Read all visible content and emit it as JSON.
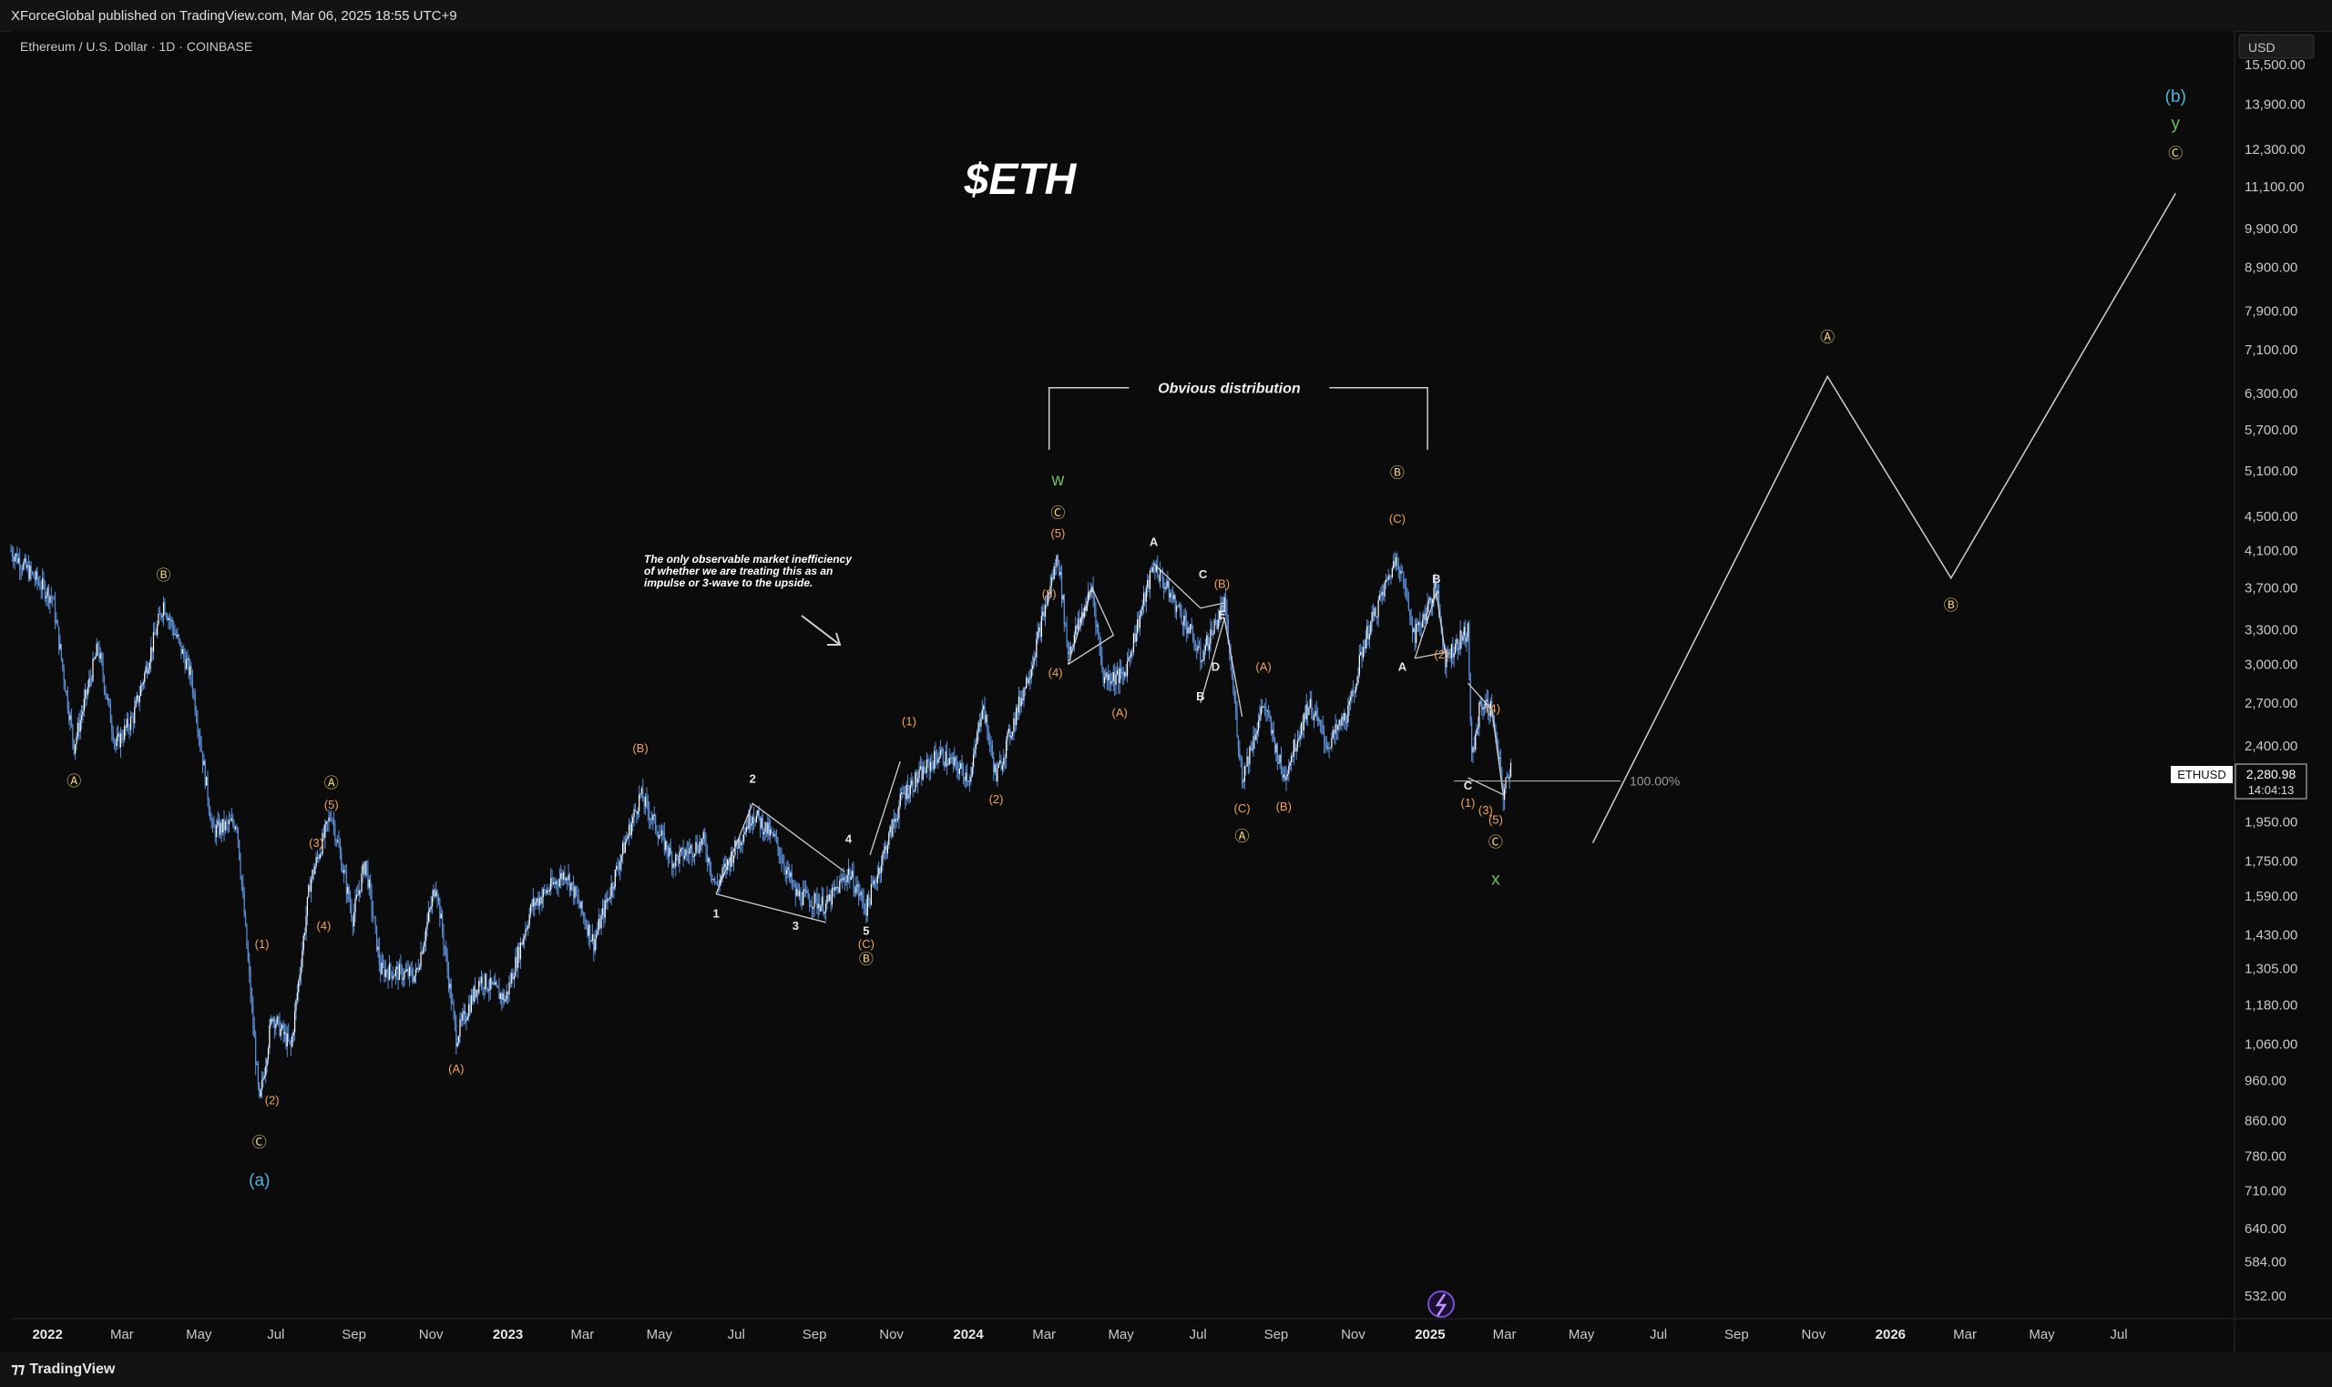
{
  "header": {
    "published": "XForceGlobal published on TradingView.com, Mar 06, 2025 18:55 UTC+9",
    "symbol": "Ethereum / U.S. Dollar · 1D · COINBASE",
    "currency": "USD"
  },
  "footer": {
    "brand": "TradingView"
  },
  "colors": {
    "background": "#0b0b0b",
    "candle": "#5b8fd6",
    "orange_label": "#f0a45a",
    "yellow_label": "#ecd076",
    "green_label": "#6dbd63",
    "cyan_label": "#4fb3d9",
    "projection_line": "#cfcfcf"
  },
  "chart_data": {
    "type": "candlestick",
    "title": "$ETH",
    "y_scale": "log",
    "ylim": [
      500,
      17000
    ],
    "x_range": [
      "2021-12-03",
      "2026-09-30"
    ],
    "y_ticks": [
      "15,500.00",
      "13,900.00",
      "12,300.00",
      "11,100.00",
      "9,900.00",
      "8,900.00",
      "7,900.00",
      "7,100.00",
      "6,300.00",
      "5,700.00",
      "5,100.00",
      "4,500.00",
      "4,100.00",
      "3,700.00",
      "3,300.00",
      "3,000.00",
      "2,700.00",
      "2,400.00",
      "1,950.00",
      "1,750.00",
      "1,590.00",
      "1,430.00",
      "1,305.00",
      "1,180.00",
      "1,060.00",
      "960.00",
      "860.00",
      "780.00",
      "710.00",
      "640.00",
      "584.00",
      "532.00"
    ],
    "x_ticks": [
      {
        "label": "2022",
        "date": "2022-01-01",
        "bold": true
      },
      {
        "label": "Mar",
        "date": "2022-03-01"
      },
      {
        "label": "May",
        "date": "2022-05-01"
      },
      {
        "label": "Jul",
        "date": "2022-07-01"
      },
      {
        "label": "Sep",
        "date": "2022-09-01"
      },
      {
        "label": "Nov",
        "date": "2022-11-01"
      },
      {
        "label": "2023",
        "date": "2023-01-01",
        "bold": true
      },
      {
        "label": "Mar",
        "date": "2023-03-01"
      },
      {
        "label": "May",
        "date": "2023-05-01"
      },
      {
        "label": "Jul",
        "date": "2023-07-01"
      },
      {
        "label": "Sep",
        "date": "2023-09-01"
      },
      {
        "label": "Nov",
        "date": "2023-11-01"
      },
      {
        "label": "2024",
        "date": "2024-01-01",
        "bold": true
      },
      {
        "label": "Mar",
        "date": "2024-03-01"
      },
      {
        "label": "May",
        "date": "2024-05-01"
      },
      {
        "label": "Jul",
        "date": "2024-07-01"
      },
      {
        "label": "Sep",
        "date": "2024-09-01"
      },
      {
        "label": "Nov",
        "date": "2024-11-01"
      },
      {
        "label": "2025",
        "date": "2025-01-01",
        "bold": true
      },
      {
        "label": "Mar",
        "date": "2025-03-01"
      },
      {
        "label": "May",
        "date": "2025-05-01"
      },
      {
        "label": "Jul",
        "date": "2025-07-01"
      },
      {
        "label": "Sep",
        "date": "2025-09-01"
      },
      {
        "label": "Nov",
        "date": "2025-11-01"
      },
      {
        "label": "2026",
        "date": "2026-01-01",
        "bold": true
      },
      {
        "label": "Mar",
        "date": "2026-03-01"
      },
      {
        "label": "May",
        "date": "2026-05-01"
      },
      {
        "label": "Jul",
        "date": "2026-07-01"
      }
    ],
    "price_path": [
      [
        "2021-12-03",
        4100
      ],
      [
        "2021-12-15",
        3900
      ],
      [
        "2022-01-05",
        3600
      ],
      [
        "2022-01-22",
        2400
      ],
      [
        "2022-02-10",
        3150
      ],
      [
        "2022-02-24",
        2400
      ],
      [
        "2022-03-10",
        2600
      ],
      [
        "2022-04-03",
        3550
      ],
      [
        "2022-04-25",
        2900
      ],
      [
        "2022-05-12",
        1900
      ],
      [
        "2022-05-31",
        1950
      ],
      [
        "2022-06-18",
        900
      ],
      [
        "2022-06-28",
        1150
      ],
      [
        "2022-07-13",
        1050
      ],
      [
        "2022-07-28",
        1650
      ],
      [
        "2022-08-14",
        2000
      ],
      [
        "2022-08-31",
        1500
      ],
      [
        "2022-09-10",
        1750
      ],
      [
        "2022-09-22",
        1300
      ],
      [
        "2022-10-20",
        1280
      ],
      [
        "2022-11-05",
        1650
      ],
      [
        "2022-11-21",
        1080
      ],
      [
        "2022-12-10",
        1270
      ],
      [
        "2022-12-30",
        1200
      ],
      [
        "2023-01-20",
        1550
      ],
      [
        "2023-02-16",
        1700
      ],
      [
        "2023-03-10",
        1400
      ],
      [
        "2023-04-16",
        2100
      ],
      [
        "2023-05-12",
        1750
      ],
      [
        "2023-06-05",
        1850
      ],
      [
        "2023-06-15",
        1630
      ],
      [
        "2023-07-14",
        2000
      ],
      [
        "2023-08-01",
        1850
      ],
      [
        "2023-08-17",
        1600
      ],
      [
        "2023-09-10",
        1550
      ],
      [
        "2023-09-28",
        1700
      ],
      [
        "2023-10-12",
        1540
      ],
      [
        "2023-11-10",
        2100
      ],
      [
        "2023-12-09",
        2350
      ],
      [
        "2024-01-03",
        2200
      ],
      [
        "2024-01-12",
        2700
      ],
      [
        "2024-01-23",
        2200
      ],
      [
        "2024-02-20",
        3000
      ],
      [
        "2024-03-12",
        4050
      ],
      [
        "2024-03-20",
        3100
      ],
      [
        "2024-04-08",
        3700
      ],
      [
        "2024-04-17",
        2900
      ],
      [
        "2024-05-03",
        2900
      ],
      [
        "2024-05-27",
        3950
      ],
      [
        "2024-06-24",
        3300
      ],
      [
        "2024-07-03",
        3050
      ],
      [
        "2024-07-22",
        3550
      ],
      [
        "2024-08-05",
        2200
      ],
      [
        "2024-08-22",
        2700
      ],
      [
        "2024-09-07",
        2200
      ],
      [
        "2024-09-27",
        2700
      ],
      [
        "2024-10-12",
        2400
      ],
      [
        "2024-10-29",
        2650
      ],
      [
        "2024-11-10",
        3200
      ],
      [
        "2024-12-06",
        4050
      ],
      [
        "2024-12-20",
        3250
      ],
      [
        "2025-01-06",
        3700
      ],
      [
        "2025-01-13",
        3050
      ],
      [
        "2025-01-31",
        3300
      ],
      [
        "2025-02-03",
        2300
      ],
      [
        "2025-02-10",
        2700
      ],
      [
        "2025-02-19",
        2650
      ],
      [
        "2025-02-28",
        2100
      ],
      [
        "2025-03-06",
        2280
      ]
    ],
    "last_price": {
      "symbol": "ETHUSD",
      "value": "2,280.98",
      "countdown": "14:04:13"
    },
    "projection": [
      [
        "2025-05-10",
        1840
      ],
      [
        "2025-11-12",
        6600
      ],
      [
        "2026-02-18",
        3800
      ],
      [
        "2026-08-15",
        10900
      ]
    ],
    "fib_level": {
      "label": "100.00%",
      "price": 2180
    },
    "distribution_box": {
      "label": "Obvious distribution",
      "from": "2024-03-05",
      "to": "2024-12-30",
      "top_price": 6400,
      "bottom_price": 5400
    },
    "note_text": [
      "The only observable market inefficiency",
      "of whether we are treating this as an",
      "impulse or 3-wave to the upside."
    ],
    "labels": [
      {
        "t": "Ⓐ",
        "d": "2022-01-22",
        "p": 2150,
        "c": "yellow"
      },
      {
        "t": "Ⓑ",
        "d": "2022-04-03",
        "p": 3780,
        "c": "yellow"
      },
      {
        "t": "Ⓒ",
        "d": "2022-06-18",
        "p": 800,
        "c": "yellow"
      },
      {
        "t": "(a)",
        "d": "2022-06-18",
        "p": 720,
        "c": "cyan",
        "big": true
      },
      {
        "t": "(1)",
        "d": "2022-06-20",
        "p": 1380,
        "c": "orange"
      },
      {
        "t": "(2)",
        "d": "2022-06-28",
        "p": 900,
        "c": "orange"
      },
      {
        "t": "(3)",
        "d": "2022-08-02",
        "p": 1820,
        "c": "orange"
      },
      {
        "t": "(4)",
        "d": "2022-08-08",
        "p": 1450,
        "c": "orange"
      },
      {
        "t": "(5)",
        "d": "2022-08-14",
        "p": 2020,
        "c": "orange"
      },
      {
        "t": "Ⓐ",
        "d": "2022-08-14",
        "p": 2140,
        "c": "yellow"
      },
      {
        "t": "(A)",
        "d": "2022-11-21",
        "p": 980,
        "c": "orange"
      },
      {
        "t": "(B)",
        "d": "2023-04-16",
        "p": 2360,
        "c": "orange"
      },
      {
        "t": "1",
        "d": "2023-06-15",
        "p": 1500,
        "c": "white"
      },
      {
        "t": "2",
        "d": "2023-07-14",
        "p": 2170,
        "c": "white"
      },
      {
        "t": "3",
        "d": "2023-08-17",
        "p": 1450,
        "c": "white"
      },
      {
        "t": "4",
        "d": "2023-09-28",
        "p": 1840,
        "c": "white"
      },
      {
        "t": "5",
        "d": "2023-10-12",
        "p": 1430,
        "c": "white"
      },
      {
        "t": "(C)",
        "d": "2023-10-12",
        "p": 1380,
        "c": "orange"
      },
      {
        "t": "Ⓑ",
        "d": "2023-10-12",
        "p": 1320,
        "c": "yellow"
      },
      {
        "t": "(1)",
        "d": "2023-11-15",
        "p": 2540,
        "c": "orange"
      },
      {
        "t": "(2)",
        "d": "2024-01-23",
        "p": 2050,
        "c": "orange"
      },
      {
        "t": "(3)",
        "d": "2024-03-05",
        "p": 3600,
        "c": "orange"
      },
      {
        "t": "(4)",
        "d": "2024-03-10",
        "p": 2900,
        "c": "orange"
      },
      {
        "t": "(5)",
        "d": "2024-03-12",
        "p": 4250,
        "c": "orange"
      },
      {
        "t": "Ⓒ",
        "d": "2024-03-12",
        "p": 4480,
        "c": "yellow"
      },
      {
        "t": "w",
        "d": "2024-03-12",
        "p": 4900,
        "c": "green",
        "big": true
      },
      {
        "t": "(A)",
        "d": "2024-04-30",
        "p": 2600,
        "c": "orange"
      },
      {
        "t": "A",
        "d": "2024-05-27",
        "p": 4150,
        "c": "white"
      },
      {
        "t": "C",
        "d": "2024-07-05",
        "p": 3800,
        "c": "white"
      },
      {
        "t": "(B)",
        "d": "2024-07-20",
        "p": 3700,
        "c": "orange"
      },
      {
        "t": "E",
        "d": "2024-07-20",
        "p": 3400,
        "c": "white"
      },
      {
        "t": "B",
        "d": "2024-07-03",
        "p": 2720,
        "c": "white"
      },
      {
        "t": "D",
        "d": "2024-07-15",
        "p": 2950,
        "c": "white"
      },
      {
        "t": "(A)",
        "d": "2024-08-22",
        "p": 2950,
        "c": "orange"
      },
      {
        "t": "(C)",
        "d": "2024-08-05",
        "p": 2000,
        "c": "orange"
      },
      {
        "t": "Ⓐ",
        "d": "2024-08-05",
        "p": 1850,
        "c": "yellow"
      },
      {
        "t": "(B)",
        "d": "2024-09-07",
        "p": 2010,
        "c": "orange"
      },
      {
        "t": "Ⓑ",
        "d": "2024-12-06",
        "p": 5000,
        "c": "yellow"
      },
      {
        "t": "(C)",
        "d": "2024-12-06",
        "p": 4420,
        "c": "orange"
      },
      {
        "t": "A",
        "d": "2024-12-10",
        "p": 2950,
        "c": "white"
      },
      {
        "t": "B",
        "d": "2025-01-06",
        "p": 3750,
        "c": "white"
      },
      {
        "t": "(2)",
        "d": "2025-01-10",
        "p": 3050,
        "c": "orange"
      },
      {
        "t": "(4)",
        "d": "2025-02-20",
        "p": 2630,
        "c": "orange"
      },
      {
        "t": "C",
        "d": "2025-01-31",
        "p": 2130,
        "c": "white"
      },
      {
        "t": "(1)",
        "d": "2025-01-31",
        "p": 2030,
        "c": "orange"
      },
      {
        "t": "(3)",
        "d": "2025-02-14",
        "p": 1990,
        "c": "orange"
      },
      {
        "t": "(5)",
        "d": "2025-02-22",
        "p": 1940,
        "c": "orange"
      },
      {
        "t": "Ⓒ",
        "d": "2025-02-22",
        "p": 1820,
        "c": "yellow"
      },
      {
        "t": "x",
        "d": "2025-02-22",
        "p": 1640,
        "c": "green",
        "big": true
      },
      {
        "t": "Ⓐ",
        "d": "2025-11-12",
        "p": 7250,
        "c": "yellow"
      },
      {
        "t": "Ⓑ",
        "d": "2026-02-18",
        "p": 3480,
        "c": "yellow"
      },
      {
        "t": "Ⓒ",
        "d": "2026-08-15",
        "p": 12000,
        "c": "yellow"
      },
      {
        "t": "y",
        "d": "2026-08-15",
        "p": 13000,
        "c": "green",
        "big": true
      },
      {
        "t": "(b)",
        "d": "2026-08-15",
        "p": 14000,
        "c": "cyan",
        "big": true
      }
    ],
    "structure_lines": [
      [
        [
          "2023-06-15",
          1600
        ],
        [
          "2023-07-14",
          2050
        ],
        [
          "2023-09-25",
          1700
        ]
      ],
      [
        [
          "2023-06-15",
          1600
        ],
        [
          "2023-09-10",
          1480
        ]
      ],
      [
        [
          "2023-10-15",
          1780
        ],
        [
          "2023-11-08",
          2300
        ]
      ],
      [
        [
          "2024-03-20",
          3000
        ],
        [
          "2024-04-08",
          3700
        ],
        [
          "2024-04-25",
          3250
        ],
        [
          "2024-03-20",
          3000
        ]
      ],
      [
        [
          "2024-05-27",
          3950
        ],
        [
          "2024-07-03",
          3500
        ],
        [
          "2024-07-22",
          3550
        ]
      ],
      [
        [
          "2024-07-03",
          2700
        ],
        [
          "2024-07-22",
          3400
        ],
        [
          "2024-08-05",
          2600
        ]
      ],
      [
        [
          "2024-12-20",
          3050
        ],
        [
          "2025-01-06",
          3650
        ],
        [
          "2025-01-13",
          3100
        ],
        [
          "2024-12-20",
          3050
        ]
      ],
      [
        [
          "2025-01-31",
          2850
        ],
        [
          "2025-02-19",
          2650
        ],
        [
          "2025-02-28",
          2100
        ],
        [
          "2025-01-31",
          2200
        ]
      ]
    ]
  }
}
